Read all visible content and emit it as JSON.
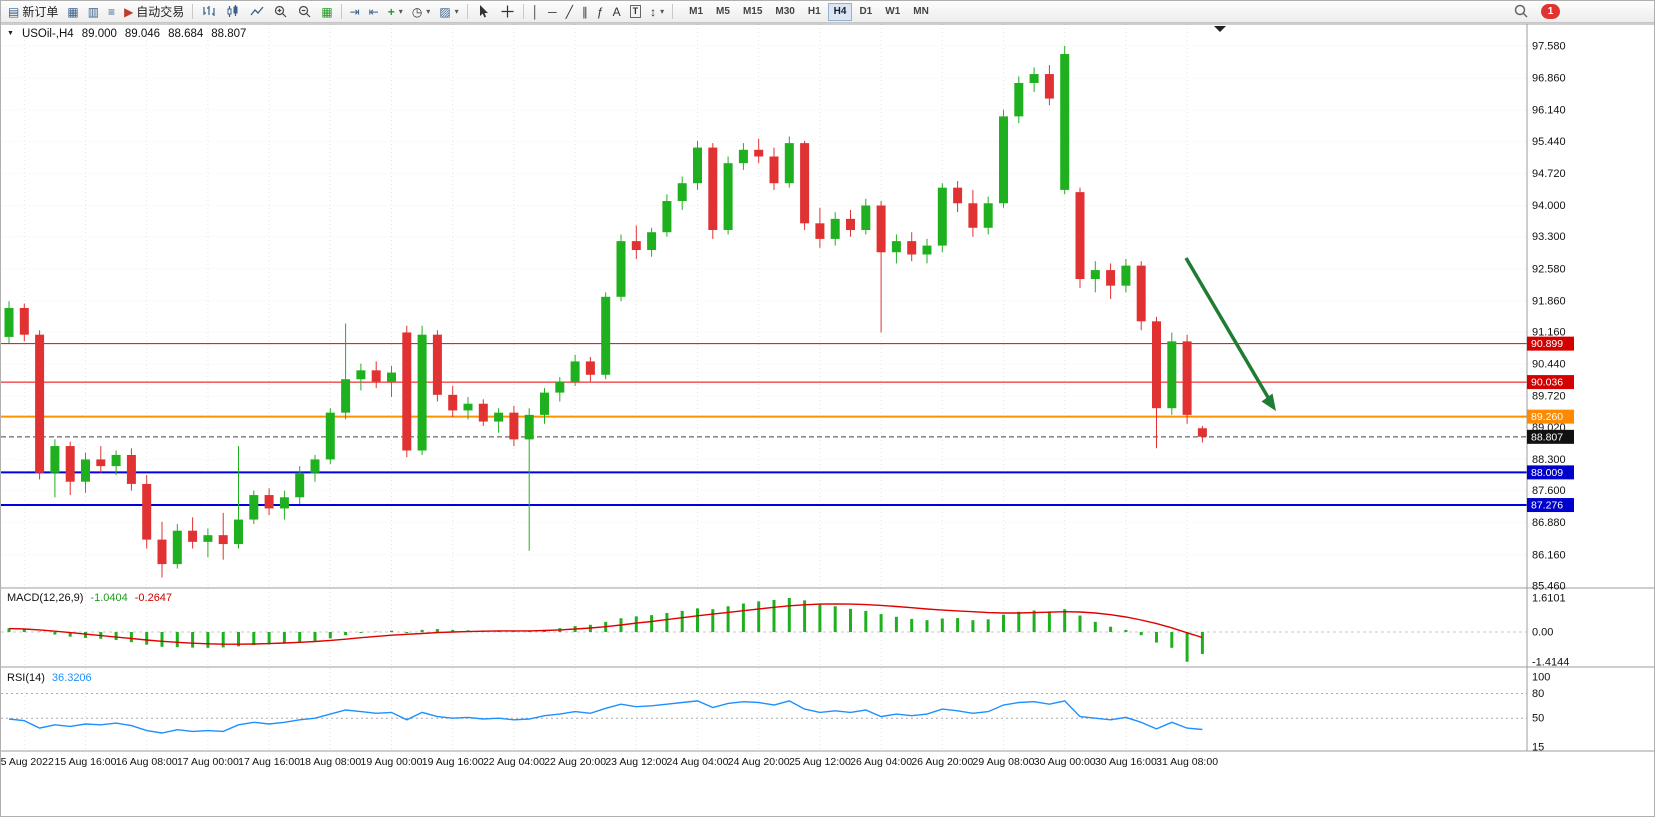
{
  "toolbar": {
    "new_order_label": "新订单",
    "autotrade_label": "自动交易",
    "timeframes": [
      "M1",
      "M5",
      "M15",
      "M30",
      "H1",
      "H4",
      "D1",
      "W1",
      "MN"
    ],
    "active_timeframe": "H4",
    "notification_count": "1",
    "glyphs": {
      "new_order_doc": "▤",
      "new_chart": "▦",
      "profiles": "▥",
      "market_watch": "≡",
      "autotrade_play": "▶",
      "tile_windows": "▦",
      "auto_scroll": "⇥",
      "chart_shift": "⇤",
      "indicators_plus": "+",
      "clock": "◷",
      "templates": "▨",
      "dropdown_caret": "▾",
      "vertical_line": "│",
      "horizontal_line": "─",
      "trendline": "╱",
      "channel": "∥",
      "fibonacci": "ƒ",
      "text_tool": "A",
      "text_label": "T",
      "arrows_tool": "↕"
    }
  },
  "chart": {
    "symbol_label": "USOil-,H4",
    "open": "89.000",
    "high": "89.046",
    "low": "88.684",
    "close": "88.807",
    "price_ticks": [
      "97.580",
      "96.860",
      "96.140",
      "95.440",
      "94.720",
      "94.000",
      "93.300",
      "92.580",
      "91.860",
      "91.160",
      "90.440",
      "89.720",
      "89.020",
      "88.300",
      "87.600",
      "86.880",
      "86.160",
      "85.460"
    ],
    "levels": [
      {
        "value": "90.899",
        "price": 90.899,
        "color": "#e80000",
        "tag_color": "#d40000",
        "style": "solid",
        "width": 1
      },
      {
        "value": "90.036",
        "price": 90.036,
        "color": "#e80000",
        "tag_color": "#d40000",
        "style": "solid",
        "width": 1
      },
      {
        "value": "89.260",
        "price": 89.26,
        "color": "#ff9000",
        "tag_color": "#ff8a00",
        "style": "solid",
        "width": 2
      },
      {
        "value": "88.807",
        "price": 88.807,
        "color": "#444444",
        "tag_color": "#111111",
        "style": "dashed",
        "width": 1
      },
      {
        "value": "88.009",
        "price": 88.009,
        "color": "#0000e0",
        "tag_color": "#0000cc",
        "style": "solid",
        "width": 2
      },
      {
        "value": "87.276",
        "price": 87.276,
        "color": "#0000e0",
        "tag_color": "#0000cc",
        "style": "solid",
        "width": 2
      }
    ],
    "time_labels": [
      "15 Aug 2022",
      "15 Aug 16:00",
      "16 Aug 08:00",
      "17 Aug 00:00",
      "17 Aug 16:00",
      "18 Aug 08:00",
      "19 Aug 00:00",
      "19 Aug 16:00",
      "22 Aug 04:00",
      "22 Aug 20:00",
      "23 Aug 12:00",
      "24 Aug 04:00",
      "24 Aug 20:00",
      "25 Aug 12:00",
      "26 Aug 04:00",
      "26 Aug 20:00",
      "29 Aug 08:00",
      "30 Aug 00:00",
      "30 Aug 16:00",
      "31 Aug 08:00"
    ],
    "arrow_color": "#1e7d32"
  },
  "chart_data": {
    "type": "candlestick",
    "symbol": "USOil-",
    "timeframe": "H4",
    "up_color": "#1fb01f",
    "down_color": "#e03232",
    "candles": [
      [
        91.05,
        91.85,
        90.9,
        91.7
      ],
      [
        91.7,
        91.8,
        90.95,
        91.1
      ],
      [
        91.1,
        91.2,
        87.85,
        88.0
      ],
      [
        88.0,
        88.75,
        87.45,
        88.6
      ],
      [
        88.6,
        88.7,
        87.5,
        87.8
      ],
      [
        87.8,
        88.45,
        87.55,
        88.3
      ],
      [
        88.3,
        88.6,
        88.0,
        88.15
      ],
      [
        88.15,
        88.5,
        87.95,
        88.4
      ],
      [
        88.4,
        88.55,
        87.6,
        87.75
      ],
      [
        87.75,
        87.95,
        86.3,
        86.5
      ],
      [
        86.5,
        86.9,
        85.65,
        85.95
      ],
      [
        85.95,
        86.85,
        85.85,
        86.7
      ],
      [
        86.7,
        87.0,
        86.3,
        86.45
      ],
      [
        86.45,
        86.75,
        86.1,
        86.6
      ],
      [
        86.6,
        87.1,
        86.05,
        86.4
      ],
      [
        86.4,
        88.6,
        86.3,
        86.95
      ],
      [
        86.95,
        87.6,
        86.85,
        87.5
      ],
      [
        87.5,
        87.65,
        87.05,
        87.2
      ],
      [
        87.2,
        87.6,
        86.95,
        87.45
      ],
      [
        87.45,
        88.15,
        87.3,
        88.0
      ],
      [
        88.0,
        88.4,
        87.8,
        88.3
      ],
      [
        88.3,
        89.45,
        88.2,
        89.35
      ],
      [
        89.35,
        91.35,
        89.2,
        90.1
      ],
      [
        90.1,
        90.45,
        89.85,
        90.3
      ],
      [
        90.3,
        90.5,
        89.9,
        90.05
      ],
      [
        90.05,
        90.4,
        89.7,
        90.25
      ],
      [
        91.15,
        91.3,
        88.35,
        88.5
      ],
      [
        88.5,
        91.3,
        88.4,
        91.1
      ],
      [
        91.1,
        91.2,
        89.6,
        89.75
      ],
      [
        89.75,
        89.95,
        89.25,
        89.4
      ],
      [
        89.4,
        89.7,
        89.2,
        89.55
      ],
      [
        89.55,
        89.65,
        89.05,
        89.15
      ],
      [
        89.15,
        89.45,
        88.9,
        89.35
      ],
      [
        89.35,
        89.5,
        88.6,
        88.75
      ],
      [
        88.75,
        89.45,
        86.25,
        89.3
      ],
      [
        89.3,
        89.9,
        89.1,
        89.8
      ],
      [
        89.8,
        90.15,
        89.6,
        90.05
      ],
      [
        90.05,
        90.65,
        89.95,
        90.5
      ],
      [
        90.5,
        90.6,
        90.05,
        90.2
      ],
      [
        90.2,
        92.05,
        90.1,
        91.95
      ],
      [
        91.95,
        93.35,
        91.85,
        93.2
      ],
      [
        93.2,
        93.55,
        92.8,
        93.0
      ],
      [
        93.0,
        93.5,
        92.85,
        93.4
      ],
      [
        93.4,
        94.25,
        93.3,
        94.1
      ],
      [
        94.1,
        94.65,
        93.9,
        94.5
      ],
      [
        94.5,
        95.45,
        94.35,
        95.3
      ],
      [
        95.3,
        95.4,
        93.25,
        93.45
      ],
      [
        93.45,
        95.1,
        93.35,
        94.95
      ],
      [
        94.95,
        95.4,
        94.8,
        95.25
      ],
      [
        95.25,
        95.5,
        94.95,
        95.1
      ],
      [
        95.1,
        95.3,
        94.35,
        94.5
      ],
      [
        94.5,
        95.55,
        94.4,
        95.4
      ],
      [
        95.4,
        95.45,
        93.45,
        93.6
      ],
      [
        93.6,
        93.95,
        93.05,
        93.25
      ],
      [
        93.25,
        93.85,
        93.1,
        93.7
      ],
      [
        93.7,
        93.9,
        93.3,
        93.45
      ],
      [
        93.45,
        94.15,
        93.35,
        94.0
      ],
      [
        94.0,
        94.1,
        91.15,
        92.95
      ],
      [
        92.95,
        93.35,
        92.7,
        93.2
      ],
      [
        93.2,
        93.4,
        92.75,
        92.9
      ],
      [
        92.9,
        93.25,
        92.7,
        93.1
      ],
      [
        93.1,
        94.5,
        92.95,
        94.4
      ],
      [
        94.4,
        94.55,
        93.85,
        94.05
      ],
      [
        94.05,
        94.35,
        93.3,
        93.5
      ],
      [
        93.5,
        94.2,
        93.35,
        94.05
      ],
      [
        94.05,
        96.15,
        93.95,
        96.0
      ],
      [
        96.0,
        96.9,
        95.85,
        96.75
      ],
      [
        96.75,
        97.1,
        96.55,
        96.95
      ],
      [
        96.95,
        97.15,
        96.25,
        96.4
      ],
      [
        94.35,
        97.58,
        94.25,
        97.4
      ],
      [
        94.3,
        94.4,
        92.15,
        92.35
      ],
      [
        92.35,
        92.75,
        92.05,
        92.55
      ],
      [
        92.55,
        92.7,
        91.9,
        92.2
      ],
      [
        92.2,
        92.8,
        92.05,
        92.65
      ],
      [
        92.65,
        92.75,
        91.2,
        91.4
      ],
      [
        91.4,
        91.5,
        88.55,
        89.45
      ],
      [
        89.45,
        91.15,
        89.3,
        90.95
      ],
      [
        90.95,
        91.1,
        89.1,
        89.3
      ],
      [
        89.0,
        89.05,
        88.68,
        88.81
      ]
    ],
    "indicators": {
      "macd": {
        "label": "MACD(12,26,9)",
        "value": "-1.0404",
        "signal_value": "-0.2647",
        "scale_labels": [
          "1.6101",
          "0.00",
          "-1.4144"
        ],
        "histogram": [
          0.18,
          0.12,
          0.02,
          -0.12,
          -0.22,
          -0.28,
          -0.32,
          -0.38,
          -0.48,
          -0.6,
          -0.7,
          -0.72,
          -0.74,
          -0.75,
          -0.73,
          -0.68,
          -0.62,
          -0.58,
          -0.55,
          -0.48,
          -0.42,
          -0.3,
          -0.15,
          -0.05,
          0.02,
          0.06,
          -0.05,
          0.1,
          0.14,
          0.1,
          0.08,
          0.06,
          0.05,
          0.02,
          0.04,
          0.1,
          0.18,
          0.28,
          0.34,
          0.48,
          0.65,
          0.74,
          0.8,
          0.9,
          1.0,
          1.12,
          1.08,
          1.22,
          1.35,
          1.45,
          1.52,
          1.61,
          1.5,
          1.35,
          1.22,
          1.1,
          1.0,
          0.85,
          0.72,
          0.62,
          0.56,
          0.64,
          0.66,
          0.56,
          0.6,
          0.82,
          0.96,
          1.02,
          0.98,
          1.08,
          0.78,
          0.48,
          0.25,
          0.1,
          -0.15,
          -0.5,
          -0.75,
          -1.41,
          -1.04
        ],
        "signal": [
          0.16,
          0.14,
          0.1,
          0.04,
          -0.03,
          -0.1,
          -0.17,
          -0.24,
          -0.31,
          -0.38,
          -0.44,
          -0.49,
          -0.53,
          -0.56,
          -0.58,
          -0.58,
          -0.57,
          -0.55,
          -0.52,
          -0.49,
          -0.45,
          -0.4,
          -0.34,
          -0.27,
          -0.21,
          -0.15,
          -0.11,
          -0.07,
          -0.03,
          0.0,
          0.02,
          0.04,
          0.05,
          0.05,
          0.05,
          0.07,
          0.1,
          0.14,
          0.19,
          0.25,
          0.33,
          0.42,
          0.5,
          0.59,
          0.68,
          0.77,
          0.85,
          0.93,
          1.01,
          1.09,
          1.17,
          1.24,
          1.29,
          1.32,
          1.33,
          1.32,
          1.3,
          1.26,
          1.21,
          1.15,
          1.09,
          1.04,
          1.0,
          0.96,
          0.92,
          0.9,
          0.9,
          0.92,
          0.94,
          0.96,
          0.95,
          0.9,
          0.82,
          0.71,
          0.57,
          0.4,
          0.2,
          -0.04,
          -0.26
        ]
      },
      "rsi": {
        "label": "RSI(14)",
        "value": "36.3206",
        "scale_labels": [
          "100",
          "80",
          "50",
          "15"
        ],
        "levels": [
          80,
          50
        ],
        "values": [
          49,
          47,
          38,
          42,
          40,
          43,
          42,
          44,
          41,
          35,
          32,
          36,
          34,
          35,
          34,
          42,
          45,
          43,
          45,
          48,
          50,
          55,
          60,
          58,
          56,
          57,
          48,
          57,
          52,
          50,
          51,
          49,
          50,
          48,
          49,
          53,
          55,
          58,
          56,
          62,
          67,
          64,
          65,
          67,
          69,
          71,
          63,
          68,
          70,
          69,
          66,
          71,
          61,
          57,
          59,
          57,
          60,
          52,
          55,
          53,
          55,
          61,
          59,
          56,
          58,
          66,
          69,
          70,
          67,
          71,
          52,
          50,
          48,
          51,
          45,
          37,
          45,
          38,
          36.3
        ]
      }
    }
  }
}
